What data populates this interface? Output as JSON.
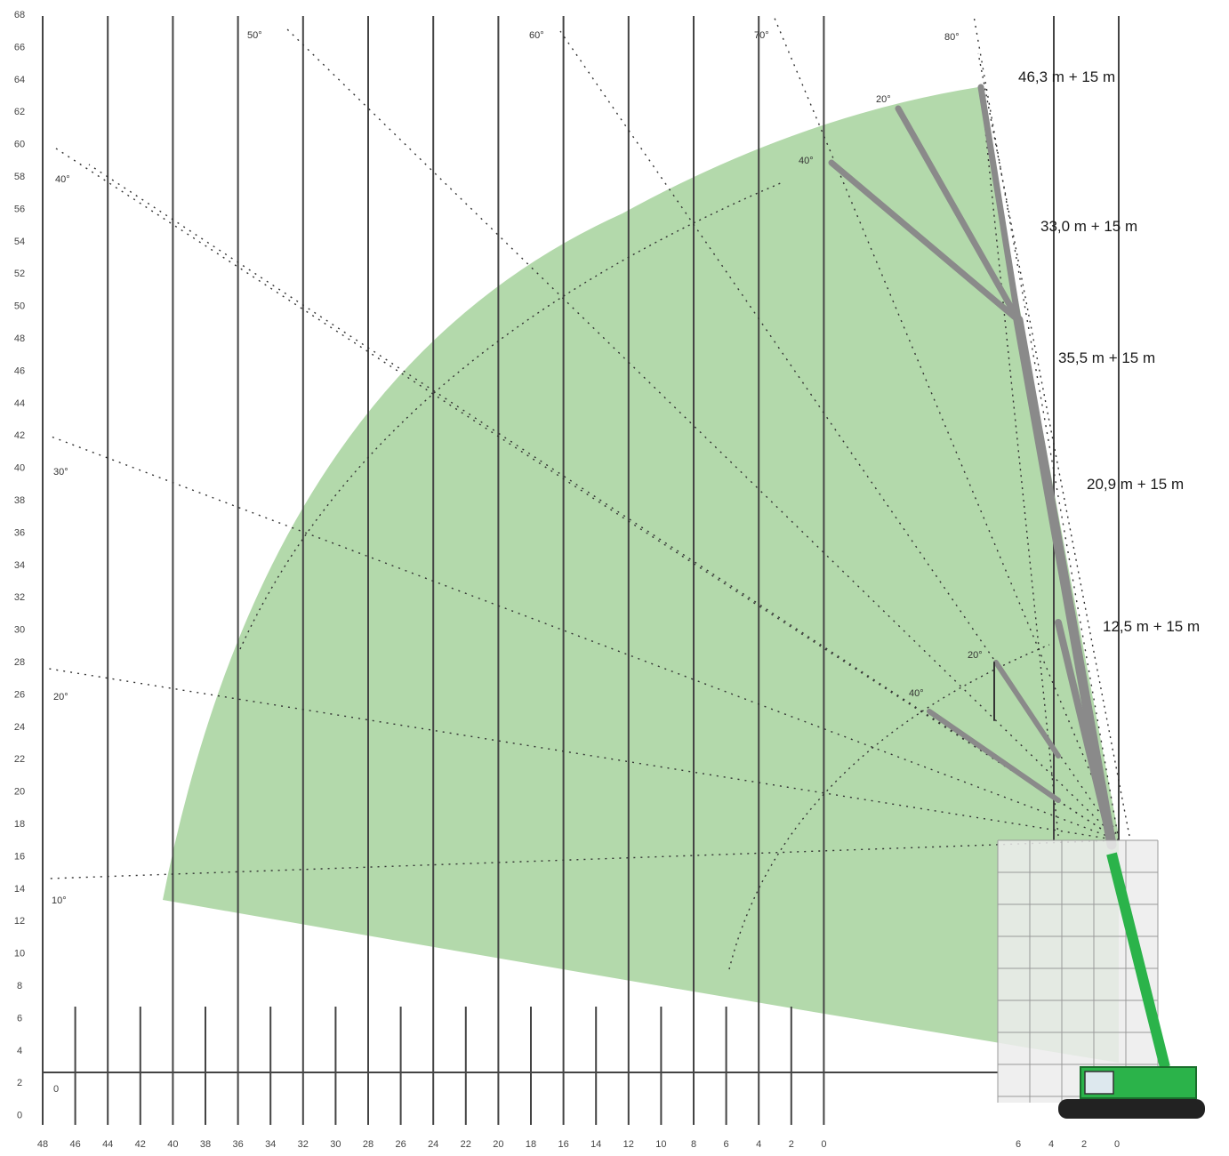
{
  "chart_data": {
    "type": "diagram",
    "title": "",
    "xlabel": "",
    "ylabel": "",
    "colors": {
      "envelope": "#b3d9ab",
      "boom": "#8a8a8a",
      "crane": "#2bb34a",
      "grid": "#555555"
    },
    "x_ticks_left": [
      "48",
      "46",
      "44",
      "42",
      "40",
      "38",
      "36",
      "34",
      "32",
      "30",
      "28",
      "26",
      "24",
      "22",
      "20",
      "18",
      "16",
      "14",
      "12",
      "10",
      "8",
      "6",
      "4",
      "2",
      "0"
    ],
    "x_ticks_right": [
      "6",
      "4",
      "2",
      "0"
    ],
    "y_ticks": [
      "68",
      "66",
      "64",
      "62",
      "60",
      "58",
      "56",
      "54",
      "52",
      "50",
      "48",
      "46",
      "44",
      "42",
      "40",
      "38",
      "36",
      "34",
      "32",
      "30",
      "28",
      "26",
      "24",
      "22",
      "20",
      "18",
      "16",
      "14",
      "12",
      "10",
      "8",
      "6",
      "4",
      "2",
      "0"
    ],
    "boom_labels": [
      "46,3 m + 15 m",
      "33,0 m + 15 m",
      "35,5 m + 15 m",
      "20,9 m + 15 m",
      "12,5 m + 15 m"
    ],
    "radial_angle_labels": [
      "10°",
      "20°",
      "30°",
      "40°",
      "50°",
      "60°",
      "70°",
      "80°"
    ],
    "jib_angle_labels": [
      "20°",
      "40°",
      "20°",
      "40°"
    ],
    "zero_label": "0"
  }
}
